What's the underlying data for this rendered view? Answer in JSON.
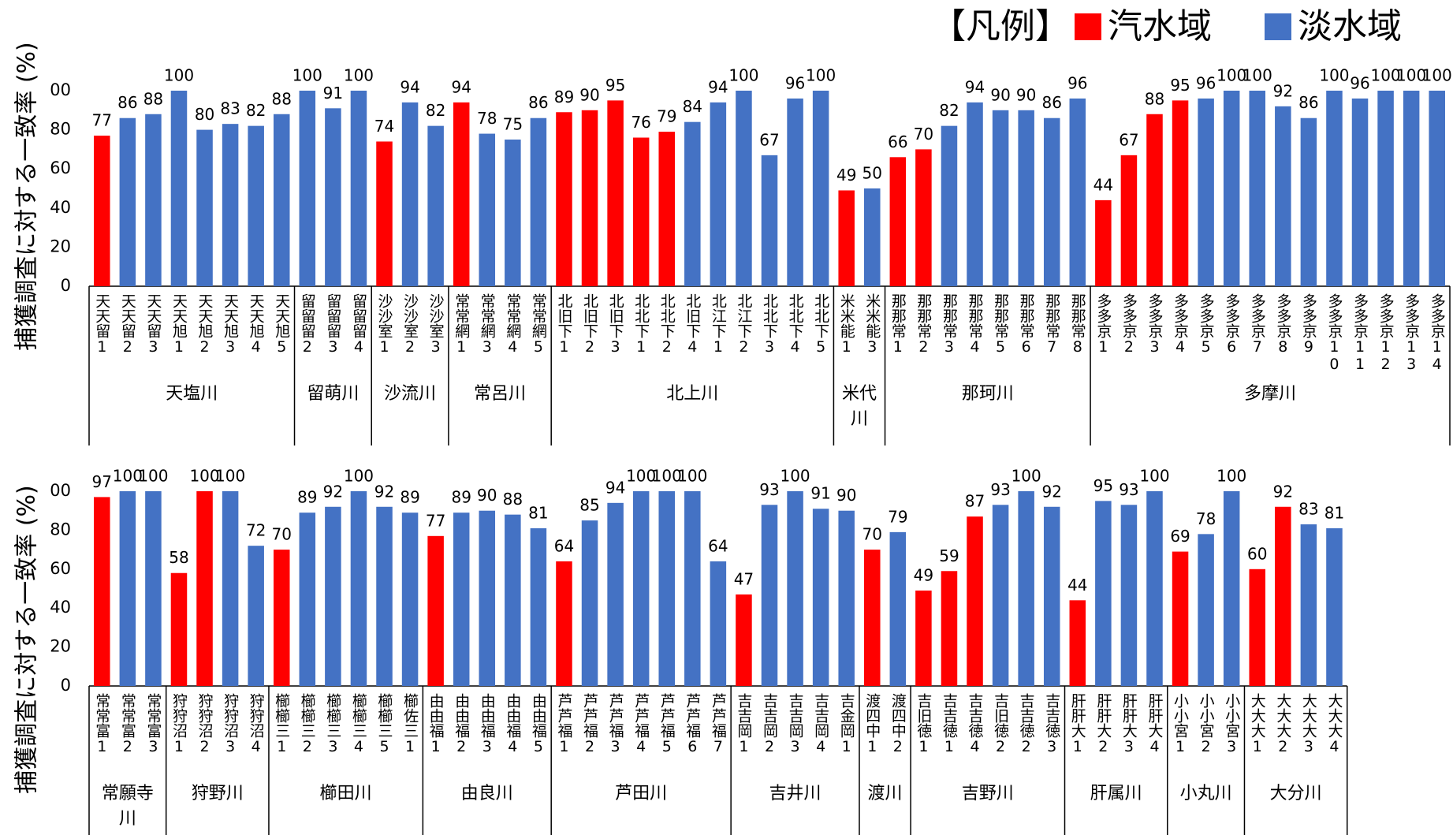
{
  "legend_title": "【凡例】",
  "chart_data": [
    {
      "type": "bar",
      "ylabel": "捕獲調査に対する一致率 (%)",
      "ylim": [
        0,
        100
      ],
      "yticks": [
        0,
        20,
        40,
        60,
        80,
        {
          "value": 100,
          "label": "00"
        }
      ],
      "groups": [
        {
          "label": "天塩川",
          "categories": [
            "天天留1",
            "天天留2",
            "天天留3",
            "天天旭1",
            "天天旭2",
            "天天旭3",
            "天天旭4",
            "天天旭5"
          ]
        },
        {
          "label": "留萌川",
          "categories": [
            "留留留2",
            "留留留3",
            "留留留4"
          ]
        },
        {
          "label": "沙流川",
          "categories": [
            "沙沙室1",
            "沙沙室2",
            "沙沙室3"
          ]
        },
        {
          "label": "常呂川",
          "categories": [
            "常常網1",
            "常常網3",
            "常常網4",
            "常常網5"
          ]
        },
        {
          "label": "北上川",
          "categories": [
            "北旧下1",
            "北旧下2",
            "北旧下3",
            "北北下1",
            "北北下2",
            "北旧下4",
            "北江下1",
            "北江下2",
            "北北下3",
            "北北下4",
            "北北下5"
          ]
        },
        {
          "label": "米代川",
          "categories": [
            "米米能1",
            "米米能3"
          ]
        },
        {
          "label": "那珂川",
          "categories": [
            "那那常1",
            "那那常2",
            "那那常3",
            "那那常4",
            "那那常5",
            "那那常6",
            "那那常7",
            "那那常8"
          ]
        },
        {
          "label": "多摩川",
          "categories": [
            "多多京1",
            "多多京2",
            "多多京3",
            "多多京4",
            "多多京5",
            "多多京6",
            "多多京7",
            "多多京8",
            "多多京9",
            "多多京10",
            "多多京11",
            "多多京12",
            "多多京13",
            "多多京14"
          ]
        }
      ],
      "series": [
        {
          "name": "汽水域",
          "color": "#ff0000",
          "values": [
            77,
            null,
            null,
            null,
            null,
            null,
            null,
            null,
            null,
            null,
            null,
            74,
            null,
            null,
            94,
            null,
            null,
            null,
            89,
            90,
            95,
            76,
            79,
            null,
            null,
            null,
            null,
            null,
            null,
            49,
            null,
            66,
            70,
            null,
            null,
            null,
            null,
            null,
            null,
            44,
            67,
            88,
            95,
            null,
            null,
            null,
            null,
            null,
            null,
            null,
            null,
            null,
            null
          ]
        },
        {
          "name": "淡水域",
          "color": "#4472c4",
          "values": [
            null,
            86,
            88,
            100,
            80,
            83,
            82,
            88,
            100,
            91,
            100,
            null,
            94,
            82,
            null,
            78,
            75,
            86,
            null,
            null,
            null,
            null,
            null,
            84,
            94,
            100,
            67,
            96,
            100,
            null,
            50,
            null,
            null,
            82,
            94,
            90,
            90,
            86,
            96,
            null,
            null,
            null,
            null,
            96,
            100,
            100,
            92,
            86,
            100,
            96,
            100,
            100,
            100
          ]
        }
      ]
    },
    {
      "type": "bar",
      "ylabel": "捕獲調査に対する一致率 (%)",
      "ylim": [
        0,
        100
      ],
      "yticks": [
        0,
        20,
        40,
        60,
        80,
        {
          "value": 100,
          "label": "00"
        }
      ],
      "groups": [
        {
          "label": "常願寺川",
          "categories": [
            "常常富1",
            "常常富2",
            "常常富3"
          ]
        },
        {
          "label": "狩野川",
          "categories": [
            "狩狩沼1",
            "狩狩沼2",
            "狩狩沼3",
            "狩狩沼4"
          ]
        },
        {
          "label": "櫛田川",
          "categories": [
            "櫛櫛三1",
            "櫛櫛三2",
            "櫛櫛三3",
            "櫛櫛三4",
            "櫛櫛三5",
            "櫛佐三1"
          ]
        },
        {
          "label": "由良川",
          "categories": [
            "由由福1",
            "由由福2",
            "由由福3",
            "由由福4",
            "由由福5"
          ]
        },
        {
          "label": "芦田川",
          "categories": [
            "芦芦福1",
            "芦芦福2",
            "芦芦福3",
            "芦芦福4",
            "芦芦福5",
            "芦芦福6",
            "芦芦福7"
          ]
        },
        {
          "label": "吉井川",
          "categories": [
            "吉吉岡1",
            "吉吉岡2",
            "吉吉岡3",
            "吉吉岡4",
            "吉金岡1"
          ]
        },
        {
          "label": "渡川",
          "categories": [
            "渡四中1",
            "渡四中2"
          ]
        },
        {
          "label": "吉野川",
          "categories": [
            "吉旧徳1",
            "吉吉徳1",
            "吉吉徳4",
            "吉旧徳2",
            "吉吉徳2",
            "吉吉徳3"
          ]
        },
        {
          "label": "肝属川",
          "categories": [
            "肝肝大1",
            "肝肝大2",
            "肝肝大3",
            "肝肝大4"
          ]
        },
        {
          "label": "小丸川",
          "categories": [
            "小小宮1",
            "小小宮2",
            "小小宮3"
          ]
        },
        {
          "label": "大分川",
          "categories": [
            "大大大1",
            "大大大2",
            "大大大3",
            "大大大4"
          ]
        }
      ],
      "series": [
        {
          "name": "汽水域",
          "color": "#ff0000",
          "values": [
            97,
            null,
            null,
            58,
            100,
            null,
            null,
            70,
            null,
            null,
            null,
            null,
            null,
            77,
            null,
            null,
            null,
            null,
            64,
            null,
            null,
            null,
            null,
            null,
            null,
            47,
            null,
            null,
            null,
            null,
            70,
            null,
            49,
            59,
            87,
            null,
            null,
            null,
            44,
            null,
            null,
            null,
            69,
            null,
            null,
            60,
            92,
            null,
            null
          ]
        },
        {
          "name": "淡水域",
          "color": "#4472c4",
          "values": [
            null,
            100,
            100,
            null,
            null,
            100,
            72,
            null,
            89,
            92,
            100,
            92,
            89,
            null,
            89,
            90,
            88,
            81,
            null,
            85,
            94,
            100,
            100,
            100,
            64,
            null,
            93,
            100,
            91,
            90,
            null,
            79,
            null,
            null,
            null,
            93,
            100,
            92,
            null,
            95,
            93,
            100,
            null,
            78,
            100,
            null,
            null,
            83,
            81
          ]
        }
      ]
    }
  ]
}
